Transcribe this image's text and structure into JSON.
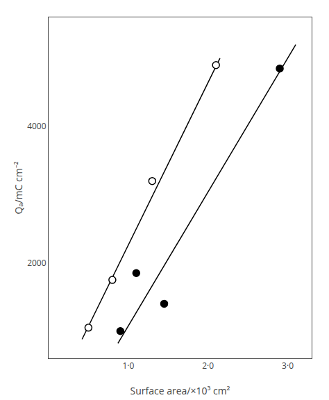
{
  "chart_data": {
    "type": "scatter",
    "xlabel": "Surface area/×10³ cm²",
    "ylabel": "Qₐ/mC cm⁻²",
    "xlim": [
      0.0,
      3.3
    ],
    "ylim": [
      600,
      5600
    ],
    "xticks": [
      {
        "value": 1.0,
        "label": "1·0"
      },
      {
        "value": 2.0,
        "label": "2·0"
      },
      {
        "value": 3.0,
        "label": "3·0"
      }
    ],
    "yticks": [
      2000,
      4000
    ],
    "grid": false,
    "series": [
      {
        "type": "line",
        "color": "black",
        "line_style": "solid",
        "x": [
          0.42,
          2.15
        ],
        "values": [
          880,
          5000
        ]
      },
      {
        "type": "line",
        "color": "black",
        "line_style": "solid",
        "x": [
          0.87,
          3.1
        ],
        "values": [
          820,
          5200
        ]
      },
      {
        "type": "scatter",
        "marker": "open",
        "color": "black",
        "x": [
          0.5,
          0.8,
          1.3,
          2.1
        ],
        "values": [
          1050,
          1750,
          3200,
          4900
        ]
      },
      {
        "type": "scatter",
        "marker": "filled",
        "color": "black",
        "x": [
          0.9,
          1.1,
          1.45,
          2.9
        ],
        "values": [
          1000,
          1850,
          1400,
          4850
        ]
      }
    ]
  }
}
